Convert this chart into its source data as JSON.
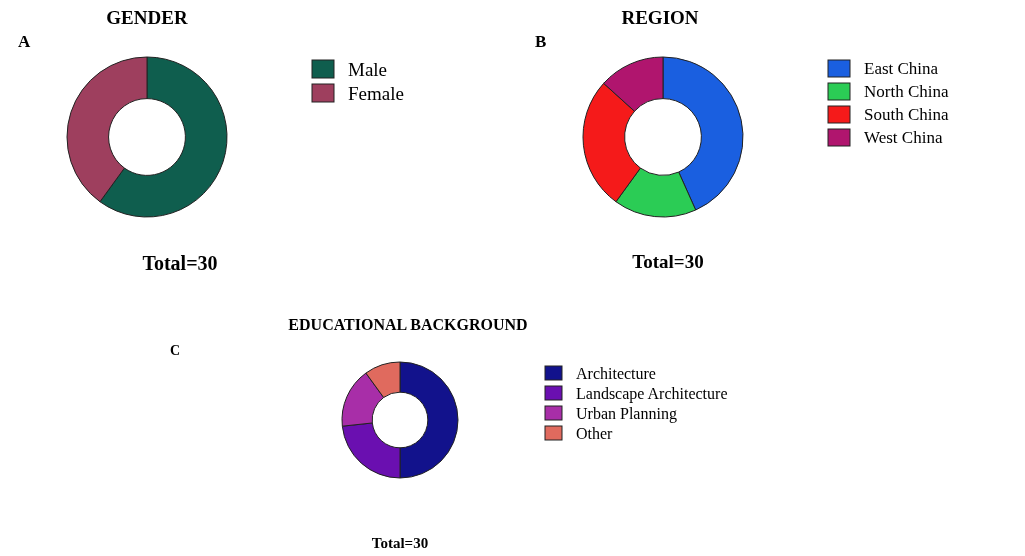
{
  "chart_data": [
    {
      "type": "donut",
      "title": "GENDER",
      "categories": [
        "Male",
        "Female"
      ],
      "values": [
        60,
        40
      ],
      "colors": [
        "#0f5e4e",
        "#9e3f5e"
      ],
      "legend": "right",
      "annotations": [
        "A",
        "Total=30"
      ]
    },
    {
      "type": "donut",
      "title": "REGION",
      "categories": [
        "East China",
        "North China",
        "South China",
        "West China"
      ],
      "values": [
        43.3,
        16.7,
        26.7,
        13.3
      ],
      "colors": [
        "#1a5fe0",
        "#2bcc55",
        "#f51a1a",
        "#b0156e"
      ],
      "legend": "right",
      "annotations": [
        "B",
        "Total=30"
      ]
    },
    {
      "type": "donut",
      "title": "EDUCATIONAL BACKGROUND",
      "categories": [
        "Architecture",
        "Landscape Architecture",
        "Urban Planning",
        "Other"
      ],
      "values": [
        50,
        23.3,
        16.7,
        10
      ],
      "colors": [
        "#12128c",
        "#6a0fb0",
        "#a82ea8",
        "#e06a5e"
      ],
      "legend": "right",
      "annotations": [
        "C",
        "Total=30"
      ]
    }
  ]
}
